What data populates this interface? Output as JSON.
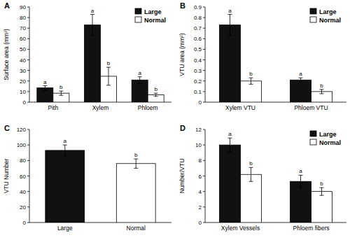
{
  "chart_data": [
    {
      "type": "bar",
      "title": "A",
      "y_label": "Surface area (mm²)",
      "categories": [
        "Pith",
        "Xylem",
        "Phloem"
      ],
      "series": [
        {
          "name": "Large",
          "color": "#111111",
          "values": [
            13.5,
            73,
            21
          ],
          "errors": [
            2,
            10,
            3
          ],
          "letters": [
            "a",
            "a",
            "a"
          ]
        },
        {
          "name": "Normal",
          "color": "#ffffff",
          "values": [
            8.5,
            24.5,
            7
          ],
          "errors": [
            2,
            8.5,
            1.5
          ],
          "letters": [
            "b",
            "b",
            "b"
          ]
        }
      ],
      "ylim": [
        0,
        90
      ],
      "yticks": [
        0,
        10,
        20,
        30,
        40,
        50,
        60,
        70,
        80,
        90
      ],
      "legend": "upper right"
    },
    {
      "type": "bar",
      "title": "B",
      "y_label": "VTU area (mm²)",
      "categories": [
        "Xylem VTU",
        "Phloem VTU"
      ],
      "series": [
        {
          "name": "Large",
          "color": "#111111",
          "values": [
            0.73,
            0.21
          ],
          "errors": [
            0.1,
            0.02
          ],
          "letters": [
            "a",
            "a"
          ]
        },
        {
          "name": "Normal",
          "color": "#ffffff",
          "values": [
            0.2,
            0.1
          ],
          "errors": [
            0.03,
            0.02
          ],
          "letters": [
            "b",
            "b"
          ]
        }
      ],
      "ylim": [
        0,
        0.9
      ],
      "yticks": [
        0,
        0.1,
        0.2,
        0.3,
        0.4,
        0.5,
        0.6,
        0.7,
        0.8,
        0.9
      ],
      "legend": "upper right"
    },
    {
      "type": "bar",
      "title": "C",
      "y_label": "VTU Number",
      "categories": [
        "Large",
        "Normal"
      ],
      "values": [
        93,
        76
      ],
      "errors": [
        7,
        6
      ],
      "letters": [
        "a",
        "b"
      ],
      "colors": [
        "#111111",
        "#ffffff"
      ],
      "ylim": [
        0,
        120
      ],
      "yticks": [
        0,
        20,
        40,
        60,
        80,
        100,
        120
      ]
    },
    {
      "type": "bar",
      "title": "D",
      "y_label": "Number/VTU",
      "categories": [
        "Xylem Vessels",
        "Phloem fibers"
      ],
      "series": [
        {
          "name": "Large",
          "color": "#111111",
          "values": [
            10,
            5.3
          ],
          "errors": [
            0.9,
            0.8
          ],
          "letters": [
            "a",
            "a"
          ]
        },
        {
          "name": "Normal",
          "color": "#ffffff",
          "values": [
            6.2,
            4
          ],
          "errors": [
            0.9,
            0.5
          ],
          "letters": [
            "b",
            "b"
          ]
        }
      ],
      "ylim": [
        0,
        12
      ],
      "yticks": [
        0,
        2,
        4,
        6,
        8,
        10,
        12
      ],
      "legend": "upper right"
    }
  ]
}
